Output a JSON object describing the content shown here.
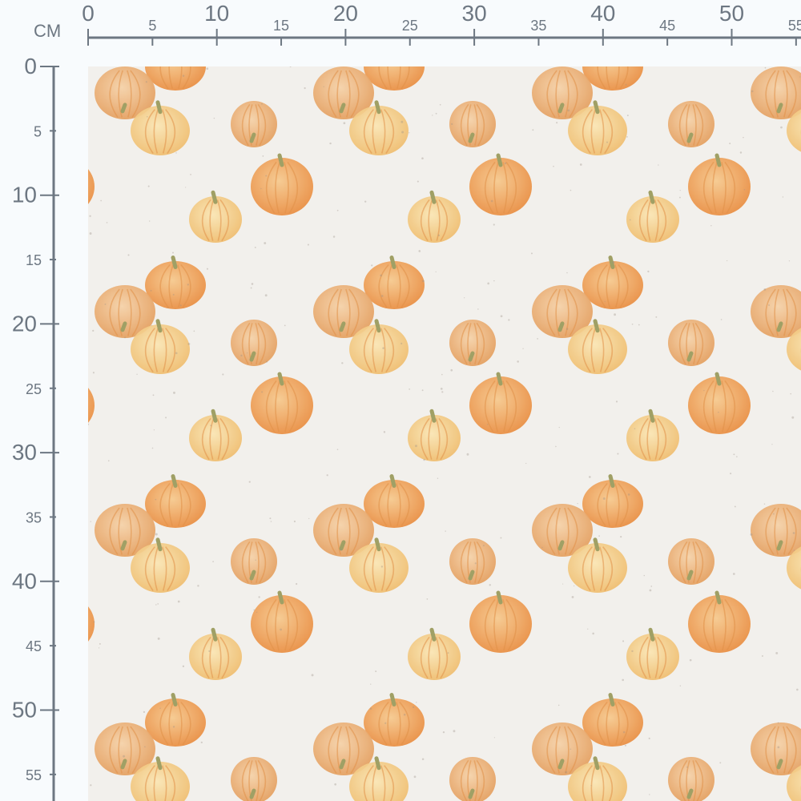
{
  "ruler": {
    "unit_label": "CM",
    "top_labels": [
      "0",
      "5",
      "10",
      "15",
      "20",
      "25",
      "30",
      "35",
      "40",
      "45",
      "50",
      "55"
    ],
    "left_labels": [
      "0",
      "5",
      "10",
      "15",
      "20",
      "25",
      "30",
      "35",
      "40",
      "45",
      "50",
      "55"
    ],
    "color": "#6d7782"
  },
  "fabric": {
    "pattern": "watercolor pumpkins",
    "background_color": "#f2f0ec",
    "pumpkin_colors": [
      "#f0a85a",
      "#f4c987",
      "#e9a56a",
      "#f6d9a0"
    ]
  }
}
